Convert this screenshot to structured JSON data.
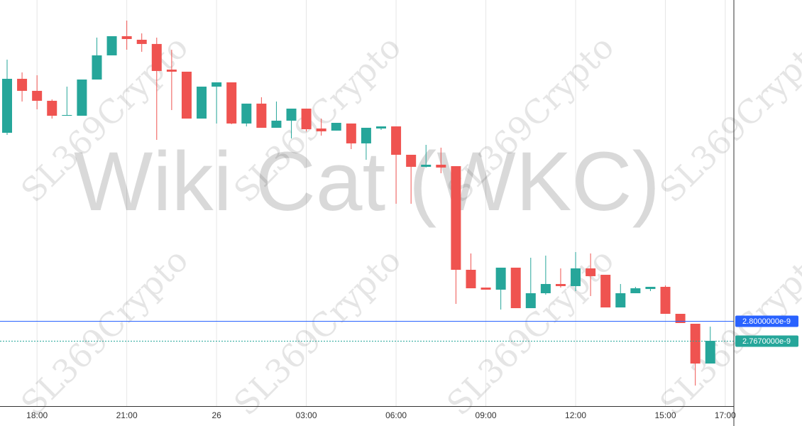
{
  "chart_data": {
    "type": "candlestick",
    "watermark": "Wiki Cat (WKC)",
    "brand_watermark": "SL369Crypto",
    "categories": [
      null,
      null,
      "18:00",
      null,
      null,
      null,
      null,
      null,
      "21:00",
      null,
      null,
      null,
      null,
      null,
      "26",
      null,
      null,
      null,
      null,
      null,
      "03:00",
      null,
      null,
      null,
      null,
      null,
      "06:00",
      null,
      null,
      null,
      null,
      null,
      "09:00",
      null,
      null,
      null,
      null,
      null,
      "12:00",
      null,
      null,
      null,
      null,
      null,
      "15:00",
      null,
      null,
      null,
      "17:00"
    ],
    "open": [
      3.1123e-09,
      3.2019e-09,
      3.1819e-09,
      3.1654e-09,
      3.1406e-09,
      3.1406e-09,
      3.2007e-09,
      3.2408e-09,
      3.2726e-09,
      3.2667e-09,
      3.2597e-09,
      3.2172e-09,
      3.2137e-09,
      3.1359e-09,
      3.1889e-09,
      3.196e-09,
      3.1277e-09,
      3.1607e-09,
      3.1206e-09,
      3.1324e-09,
      3.1524e-09,
      3.1194e-09,
      3.1159e-09,
      3.1277e-09,
      3.0947e-09,
      3.1194e-09,
      3.1229e-09,
      3.0758e-09,
      3.0558e-09,
      3.0593e-09,
      3.0569e-09,
      2.8849e-09,
      2.8554e-09,
      2.8519e-09,
      2.8884e-09,
      2.8212e-09,
      2.846e-09,
      2.8613e-09,
      2.8578e-09,
      2.8872e-09,
      2.8766e-09,
      2.8224e-09,
      2.846e-09,
      2.853e-09,
      2.8566e-09,
      2.8118e-09,
      2.7953e-09,
      2.7293e-09,
      null
    ],
    "high": [
      3.2337e-09,
      3.2125e-09,
      3.2078e-09,
      3.1677e-09,
      3.1889e-09,
      3.2007e-09,
      3.2703e-09,
      3.2726e-09,
      3.2985e-09,
      3.2773e-09,
      3.2703e-09,
      3.2502e-09,
      3.2137e-09,
      3.1889e-09,
      3.196e-09,
      3.196e-09,
      3.1607e-09,
      3.1713e-09,
      3.1642e-09,
      3.1524e-09,
      3.1524e-09,
      3.1359e-09,
      3.1288e-09,
      3.1277e-09,
      3.1206e-09,
      3.1229e-09,
      3.1229e-09,
      3.0758e-09,
      3.0923e-09,
      3.0876e-09,
      3.0569e-09,
      2.912e-09,
      2.8554e-09,
      2.8884e-09,
      2.8884e-09,
      2.9049e-09,
      2.9084e-09,
      2.8872e-09,
      2.9143e-09,
      2.912e-09,
      2.8766e-09,
      2.8613e-09,
      2.8566e-09,
      2.8566e-09,
      2.8589e-09,
      2.8118e-09,
      2.7953e-09,
      2.7906e-09,
      null
    ],
    "low": [
      3.1088e-09,
      3.1642e-09,
      3.1512e-09,
      3.1359e-09,
      3.1406e-09,
      3.1406e-09,
      3.2007e-09,
      3.2408e-09,
      3.2502e-09,
      3.2467e-09,
      3.1005e-09,
      3.15e-09,
      3.1359e-09,
      3.1359e-09,
      3.1277e-09,
      3.1265e-09,
      3.1229e-09,
      3.1206e-09,
      3.1206e-09,
      3.1029e-09,
      3.1147e-09,
      3.1076e-09,
      3.1159e-09,
      3.0852e-09,
      3.0675e-09,
      3.117e-09,
      2.9945e-09,
      2.9945e-09,
      3.0546e-09,
      3.0452e-09,
      2.8283e-09,
      2.8542e-09,
      2.8519e-09,
      2.8189e-09,
      2.8212e-09,
      2.8212e-09,
      2.8436e-09,
      2.8554e-09,
      2.8495e-09,
      2.8413e-09,
      2.8224e-09,
      2.8224e-09,
      2.846e-09,
      2.8495e-09,
      2.8118e-09,
      2.7965e-09,
      2.6927e-09,
      2.7293e-09,
      null
    ],
    "close": [
      3.2019e-09,
      3.1819e-09,
      3.1654e-09,
      3.1406e-09,
      3.1418e-09,
      3.2007e-09,
      3.2408e-09,
      3.2726e-09,
      3.2679e-09,
      3.2597e-09,
      3.2149e-09,
      3.2137e-09,
      3.1359e-09,
      3.1889e-09,
      3.196e-09,
      3.1277e-09,
      3.1607e-09,
      3.1206e-09,
      3.1324e-09,
      3.1524e-09,
      3.1182e-09,
      3.1147e-09,
      3.1288e-09,
      3.0947e-09,
      3.1206e-09,
      3.1229e-09,
      3.0758e-09,
      3.0558e-09,
      3.0593e-09,
      3.0546e-09,
      2.8849e-09,
      2.8542e-09,
      2.8519e-09,
      2.8884e-09,
      2.8212e-09,
      2.846e-09,
      2.8613e-09,
      2.8578e-09,
      2.8872e-09,
      2.8743e-09,
      2.8224e-09,
      2.846e-09,
      2.8542e-09,
      2.8566e-09,
      2.8118e-09,
      2.7965e-09,
      2.7293e-09,
      2.767e-09,
      null
    ],
    "up_color": "#26a69a",
    "down_color": "#ef5350",
    "ylim": [
      2.6586e-09,
      3.3327e-09
    ],
    "grid": true,
    "price_lines": [
      {
        "value": 2.8e-09,
        "label": "2.8000000e-9",
        "color": "#2962ff",
        "style": "solid"
      },
      {
        "value": 2.767e-09,
        "label": "2.7670000e-9",
        "color": "#26a69a",
        "style": "dotted"
      }
    ]
  }
}
